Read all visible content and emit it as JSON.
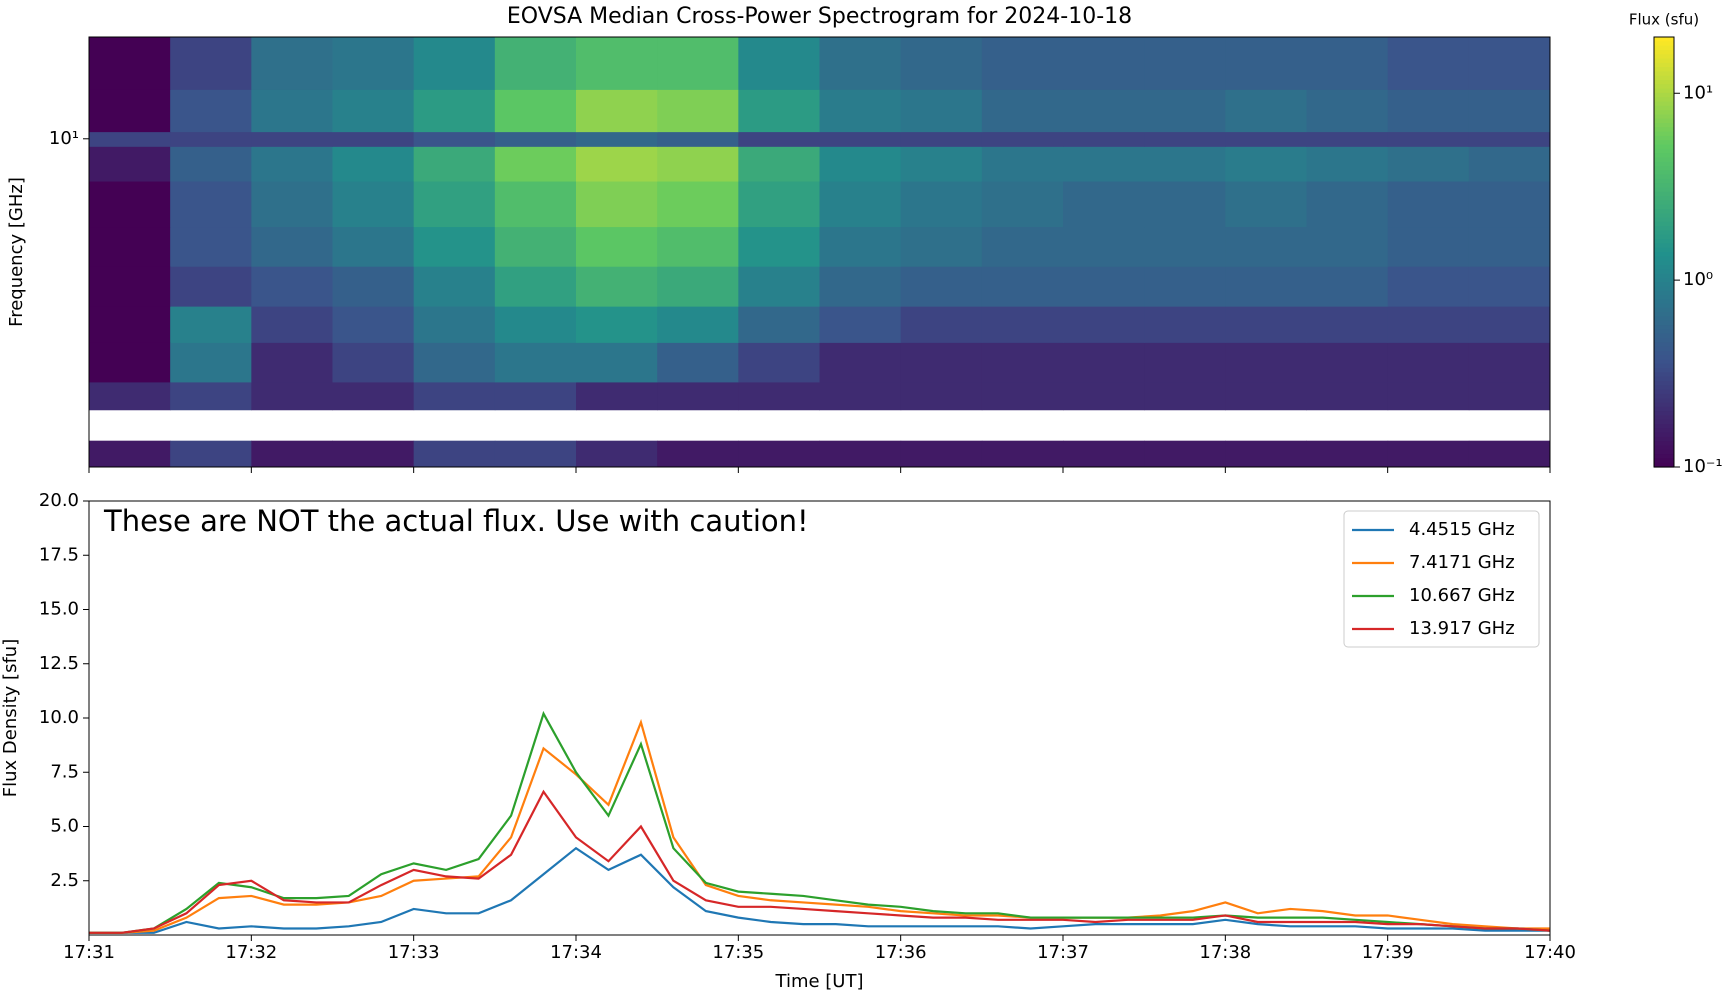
{
  "chart_data": [
    {
      "type": "heatmap",
      "title": "EOVSA Median Cross-Power Spectrogram for 2024-10-18",
      "ylabel": "Frequency [GHz]",
      "ylog": true,
      "ylim": [
        1.07,
        20
      ],
      "yticks": [
        {
          "value": 10,
          "label": "10¹"
        }
      ],
      "xlim": [
        1051,
        1060
      ],
      "x": [
        1051,
        1051.5,
        1052,
        1052.5,
        1053,
        1053.5,
        1054,
        1054.5,
        1055,
        1055.5,
        1056,
        1056.5,
        1057,
        1057.5,
        1058,
        1058.5,
        1059,
        1059.5,
        1060
      ],
      "y": [
        1.07,
        1.28,
        1.58,
        1.91,
        2.5,
        3.2,
        4.2,
        5.5,
        7.5,
        9.5,
        10.5,
        14,
        20
      ],
      "values": [
        [
          0.15,
          0.3,
          0.15,
          0.15,
          0.3,
          0.3,
          0.2,
          0.15,
          0.15,
          0.15,
          0.15,
          0.15,
          0.15,
          0.15,
          0.15,
          0.15,
          0.15,
          0.15
        ],
        [
          null,
          null,
          null,
          null,
          null,
          null,
          null,
          null,
          null,
          null,
          null,
          null,
          null,
          null,
          null,
          null,
          null,
          null
        ],
        [
          0.2,
          0.3,
          0.2,
          0.2,
          0.3,
          0.3,
          0.2,
          0.2,
          0.2,
          0.2,
          0.2,
          0.2,
          0.2,
          0.2,
          0.2,
          0.2,
          0.2,
          0.2
        ],
        [
          0.1,
          0.8,
          0.2,
          0.3,
          0.6,
          0.8,
          0.8,
          0.5,
          0.3,
          0.2,
          0.2,
          0.2,
          0.2,
          0.2,
          0.2,
          0.2,
          0.2,
          0.2
        ],
        [
          0.1,
          1.0,
          0.3,
          0.4,
          0.8,
          1.2,
          1.5,
          1.2,
          0.6,
          0.4,
          0.3,
          0.3,
          0.3,
          0.3,
          0.3,
          0.3,
          0.3,
          0.3
        ],
        [
          0.1,
          0.3,
          0.4,
          0.5,
          1.0,
          2.0,
          3.0,
          2.5,
          1.0,
          0.6,
          0.5,
          0.5,
          0.5,
          0.5,
          0.5,
          0.5,
          0.4,
          0.4
        ],
        [
          0.1,
          0.4,
          0.6,
          0.8,
          1.5,
          3.0,
          5.0,
          4.0,
          1.5,
          0.8,
          0.7,
          0.6,
          0.6,
          0.6,
          0.6,
          0.6,
          0.5,
          0.5
        ],
        [
          0.1,
          0.4,
          0.7,
          1.0,
          2.0,
          4.0,
          7.0,
          6.0,
          2.0,
          1.0,
          0.8,
          0.7,
          0.6,
          0.6,
          0.7,
          0.6,
          0.5,
          0.5
        ],
        [
          0.15,
          0.5,
          0.8,
          1.2,
          2.5,
          6.0,
          9.0,
          8.0,
          2.5,
          1.2,
          1.0,
          0.8,
          0.8,
          0.8,
          0.9,
          0.8,
          0.7,
          0.6
        ],
        [
          0.3,
          0.3,
          0.3,
          0.3,
          0.4,
          0.5,
          0.6,
          0.5,
          0.3,
          0.3,
          0.3,
          0.3,
          0.3,
          0.3,
          0.3,
          0.3,
          0.3,
          0.3
        ],
        [
          0.1,
          0.4,
          0.8,
          1.0,
          1.8,
          5.0,
          8.0,
          7.0,
          1.8,
          0.9,
          0.8,
          0.6,
          0.6,
          0.6,
          0.7,
          0.6,
          0.5,
          0.5
        ],
        [
          0.1,
          0.3,
          0.7,
          0.8,
          1.2,
          3.0,
          4.0,
          4.0,
          1.2,
          0.7,
          0.6,
          0.5,
          0.5,
          0.5,
          0.5,
          0.5,
          0.4,
          0.4
        ]
      ],
      "colorbar": {
        "label": "Flux (sfu)",
        "log": true,
        "clim": [
          0.1,
          20
        ],
        "ticks": [
          {
            "value": 0.1,
            "label": "10⁻¹"
          },
          {
            "value": 1,
            "label": "10⁰"
          },
          {
            "value": 10,
            "label": "10¹"
          }
        ]
      }
    },
    {
      "type": "line",
      "annotation": "These are NOT the actual flux. Use with caution!",
      "xlabel": "Time [UT]",
      "ylabel": "Flux Density [sfu]",
      "legend": "upper right",
      "xlim": [
        1051,
        1060
      ],
      "ylim": [
        0,
        20
      ],
      "xticks": [
        {
          "value": 1051,
          "label": "17:31"
        },
        {
          "value": 1052,
          "label": "17:32"
        },
        {
          "value": 1053,
          "label": "17:33"
        },
        {
          "value": 1054,
          "label": "17:34"
        },
        {
          "value": 1055,
          "label": "17:35"
        },
        {
          "value": 1056,
          "label": "17:36"
        },
        {
          "value": 1057,
          "label": "17:37"
        },
        {
          "value": 1058,
          "label": "17:38"
        },
        {
          "value": 1059,
          "label": "17:39"
        },
        {
          "value": 1060,
          "label": "17:40"
        }
      ],
      "yticks": [
        2.5,
        {
          "value": 5,
          "label": "5.0"
        },
        7.5,
        {
          "value": 10,
          "label": "10.0"
        },
        12.5,
        {
          "value": 15,
          "label": "15.0"
        },
        17.5,
        {
          "value": 20,
          "label": "20.0"
        }
      ],
      "x": [
        1051,
        1051.2,
        1051.4,
        1051.6,
        1051.8,
        1052,
        1052.2,
        1052.4,
        1052.6,
        1052.8,
        1053,
        1053.2,
        1053.4,
        1053.6,
        1053.8,
        1054,
        1054.2,
        1054.4,
        1054.6,
        1054.8,
        1055,
        1055.2,
        1055.4,
        1055.6,
        1055.8,
        1056,
        1056.2,
        1056.4,
        1056.6,
        1056.8,
        1057,
        1057.2,
        1057.4,
        1057.6,
        1057.8,
        1058,
        1058.2,
        1058.4,
        1058.6,
        1058.8,
        1059,
        1059.2,
        1059.4,
        1059.6,
        1059.8,
        1060
      ],
      "series": [
        {
          "name": "4.4515 GHz",
          "color": "#1f77b4",
          "values": [
            0.1,
            0.1,
            0.1,
            0.6,
            0.3,
            0.4,
            0.3,
            0.3,
            0.4,
            0.6,
            1.2,
            1.0,
            1.0,
            1.6,
            2.8,
            4.0,
            3.0,
            3.7,
            2.2,
            1.1,
            0.8,
            0.6,
            0.5,
            0.5,
            0.4,
            0.4,
            0.4,
            0.4,
            0.4,
            0.3,
            0.4,
            0.5,
            0.5,
            0.5,
            0.5,
            0.7,
            0.5,
            0.4,
            0.4,
            0.4,
            0.3,
            0.3,
            0.3,
            0.2,
            0.2,
            0.2
          ]
        },
        {
          "name": "7.4171 GHz",
          "color": "#ff7f0e",
          "values": [
            0.1,
            0.1,
            0.2,
            0.8,
            1.7,
            1.8,
            1.4,
            1.4,
            1.5,
            1.8,
            2.5,
            2.6,
            2.7,
            4.5,
            8.6,
            7.4,
            6.0,
            9.8,
            4.5,
            2.3,
            1.8,
            1.6,
            1.5,
            1.4,
            1.3,
            1.1,
            1.0,
            0.9,
            0.9,
            0.8,
            0.8,
            0.8,
            0.8,
            0.9,
            1.1,
            1.5,
            1.0,
            1.2,
            1.1,
            0.9,
            0.9,
            0.7,
            0.5,
            0.4,
            0.3,
            0.3
          ]
        },
        {
          "name": "10.667 GHz",
          "color": "#2ca02c",
          "values": [
            0.1,
            0.1,
            0.3,
            1.2,
            2.4,
            2.2,
            1.7,
            1.7,
            1.8,
            2.8,
            3.3,
            3.0,
            3.5,
            5.5,
            10.2,
            7.5,
            5.5,
            8.8,
            4.0,
            2.4,
            2.0,
            1.9,
            1.8,
            1.6,
            1.4,
            1.3,
            1.1,
            1.0,
            1.0,
            0.8,
            0.8,
            0.8,
            0.8,
            0.8,
            0.8,
            0.9,
            0.8,
            0.8,
            0.8,
            0.7,
            0.6,
            0.5,
            0.4,
            0.3,
            0.3,
            0.2
          ]
        },
        {
          "name": "13.917 GHz",
          "color": "#d62728",
          "values": [
            0.1,
            0.1,
            0.3,
            1.0,
            2.3,
            2.5,
            1.6,
            1.5,
            1.5,
            2.3,
            3.0,
            2.7,
            2.6,
            3.7,
            6.6,
            4.5,
            3.4,
            5.0,
            2.5,
            1.6,
            1.3,
            1.3,
            1.2,
            1.1,
            1.0,
            0.9,
            0.8,
            0.8,
            0.7,
            0.7,
            0.7,
            0.6,
            0.7,
            0.7,
            0.7,
            0.9,
            0.6,
            0.6,
            0.6,
            0.6,
            0.5,
            0.5,
            0.4,
            0.3,
            0.3,
            0.2
          ]
        }
      ]
    }
  ]
}
